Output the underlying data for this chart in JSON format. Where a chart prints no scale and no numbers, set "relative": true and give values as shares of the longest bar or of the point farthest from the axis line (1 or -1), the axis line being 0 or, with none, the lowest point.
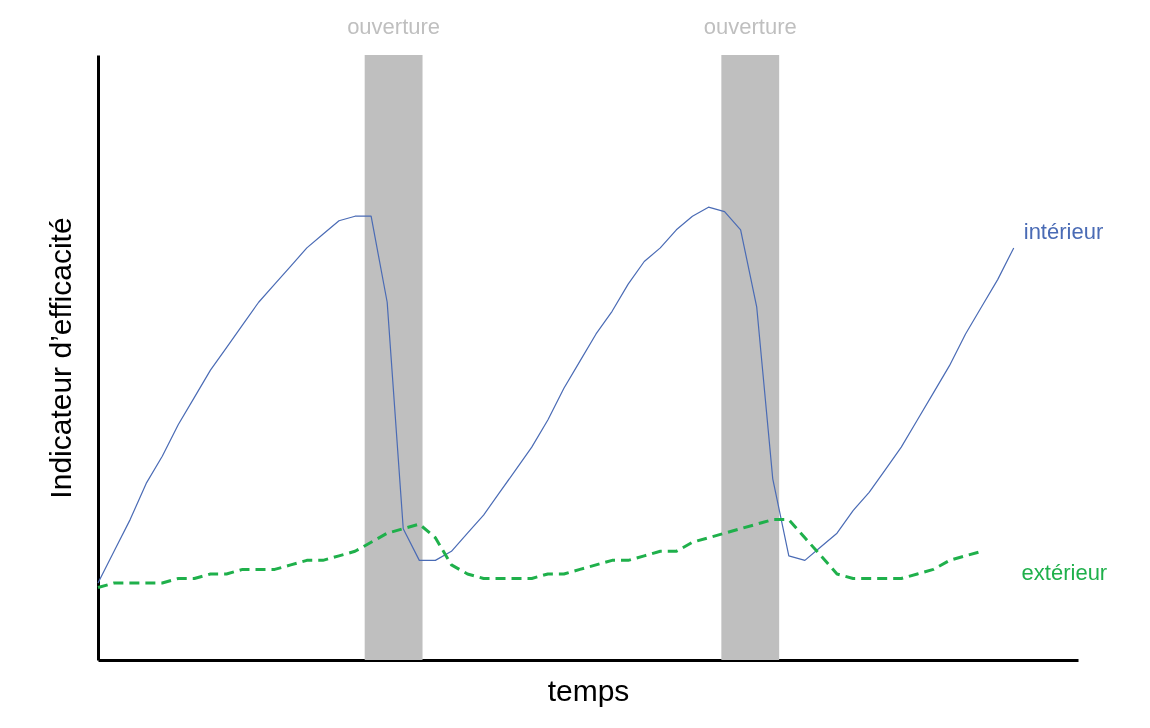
{
  "chart_data": {
    "type": "line",
    "relative": true,
    "xlabel": "temps",
    "ylabel": "Indicateur d’efficacité",
    "legend": false,
    "categories": [
      null,
      null,
      null,
      null,
      null,
      null,
      null,
      null,
      null,
      null,
      null,
      null,
      null,
      null,
      null,
      null,
      null,
      null,
      null,
      null,
      null,
      null,
      null,
      null,
      null,
      null,
      null,
      null,
      null,
      null,
      null,
      null,
      null,
      null,
      null,
      null,
      null,
      null,
      null,
      null,
      null,
      null,
      null,
      null,
      null,
      null,
      null,
      null,
      null,
      null,
      null,
      null,
      null,
      null,
      null,
      null,
      null,
      null,
      null,
      null,
      null,
      null
    ],
    "annotations": [
      "ouverture",
      "ouverture"
    ],
    "series": [
      {
        "name": "intérieur",
        "color": "#4a6bb5",
        "line_style": "solid",
        "values": [
          0.17,
          0.24,
          0.31,
          0.39,
          0.45,
          0.52,
          0.58,
          0.64,
          0.69,
          0.74,
          0.79,
          0.83,
          0.87,
          0.91,
          0.94,
          0.97,
          0.98,
          0.98,
          0.79,
          0.29,
          0.22,
          0.22,
          0.24,
          0.28,
          0.32,
          0.37,
          0.42,
          0.47,
          0.53,
          0.6,
          0.66,
          0.72,
          0.77,
          0.83,
          0.88,
          0.91,
          0.95,
          0.98,
          1.0,
          0.99,
          0.95,
          0.78,
          0.4,
          0.23,
          0.22,
          0.25,
          0.28,
          0.33,
          0.37,
          0.42,
          0.47,
          0.53,
          0.59,
          0.65,
          0.72,
          0.78,
          0.84,
          0.91,
          null,
          null,
          null,
          null
        ]
      },
      {
        "name": "extérieur",
        "color": "#1fb04b",
        "line_style": "dashed",
        "values": [
          0.16,
          0.17,
          0.17,
          0.17,
          0.17,
          0.18,
          0.18,
          0.19,
          0.19,
          0.2,
          0.2,
          0.2,
          0.21,
          0.22,
          0.22,
          0.23,
          0.24,
          0.26,
          0.28,
          0.29,
          0.3,
          0.27,
          0.21,
          0.19,
          0.18,
          0.18,
          0.18,
          0.18,
          0.19,
          0.19,
          0.2,
          0.21,
          0.22,
          0.22,
          0.23,
          0.24,
          0.24,
          0.26,
          0.27,
          0.28,
          0.29,
          0.3,
          0.31,
          0.31,
          0.27,
          0.23,
          0.19,
          0.18,
          0.18,
          0.18,
          0.18,
          0.19,
          0.2,
          0.22,
          0.23,
          0.24,
          null,
          null,
          null,
          null,
          null,
          null
        ]
      }
    ]
  }
}
